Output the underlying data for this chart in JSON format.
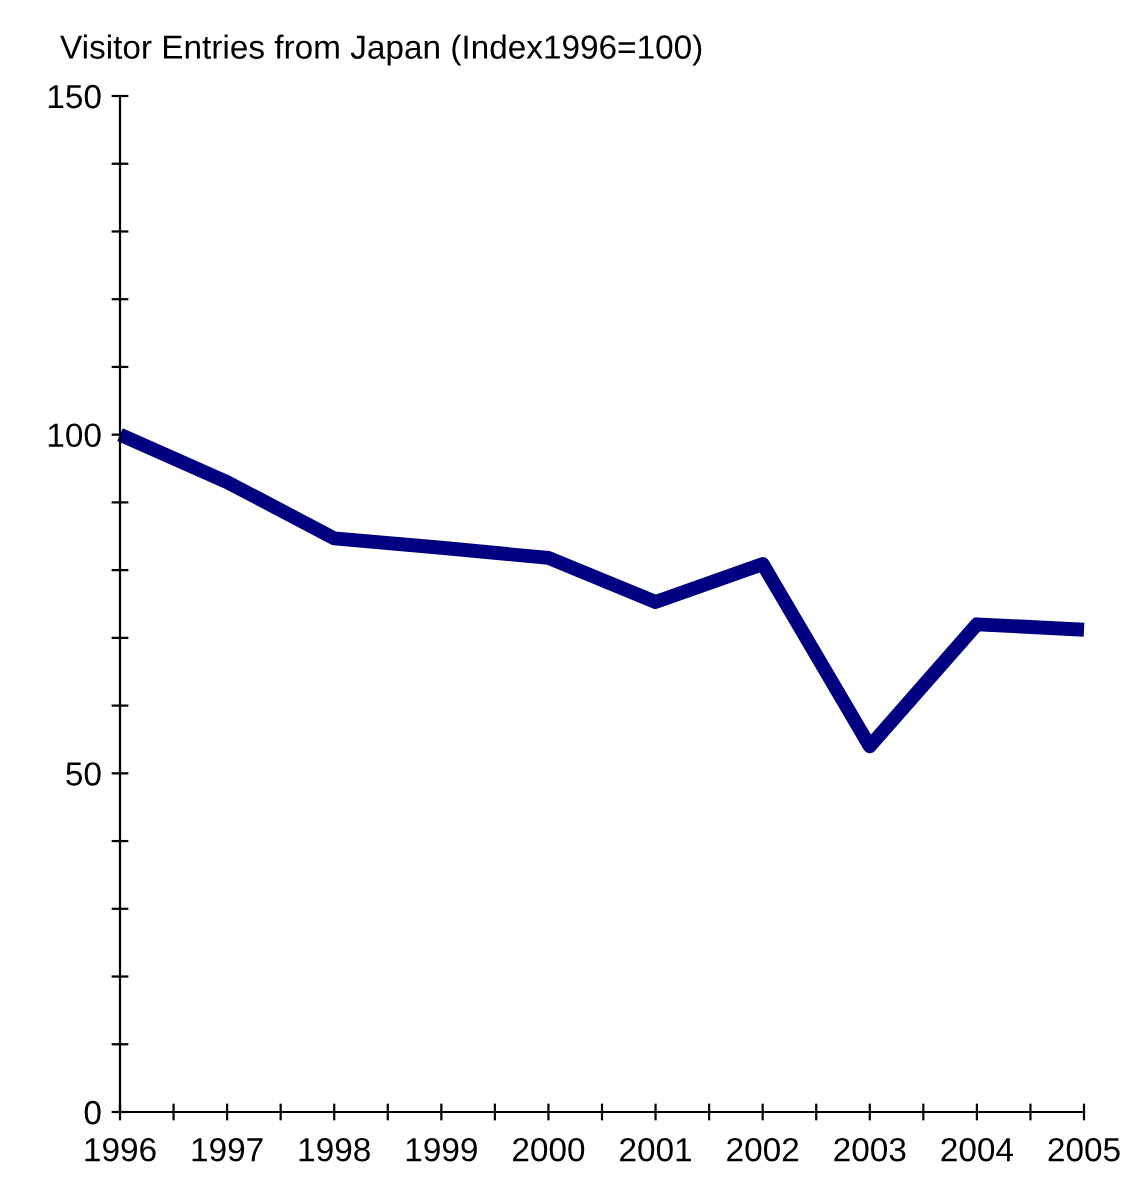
{
  "chart_data": {
    "type": "line",
    "title": "Visitor Entries from Japan (Index1996=100)",
    "x": [
      1996,
      1997,
      1998,
      1999,
      2000,
      2001,
      2002,
      2003,
      2004,
      2005
    ],
    "series": [
      {
        "color": "#000080",
        "values": [
          100,
          93,
          84.7,
          83.3,
          81.8,
          75.3,
          80.9,
          54,
          72,
          71.2
        ]
      }
    ],
    "xlim": [
      1996,
      2005
    ],
    "xticks": [
      1996,
      {
        "value": 1996.5,
        "label": null
      },
      1997,
      {
        "value": 1997.5,
        "label": null
      },
      1998,
      {
        "value": 1998.5,
        "label": null
      },
      1999,
      {
        "value": 1999.5,
        "label": null
      },
      2000,
      {
        "value": 2000.5,
        "label": null
      },
      2001,
      {
        "value": 2001.5,
        "label": null
      },
      2002,
      {
        "value": 2002.5,
        "label": null
      },
      2003,
      {
        "value": 2003.5,
        "label": null
      },
      2004,
      {
        "value": 2004.5,
        "label": null
      },
      2005
    ],
    "ylim": [
      0,
      150
    ],
    "yticks": [
      0,
      {
        "value": 10,
        "label": null
      },
      {
        "value": 20,
        "label": null
      },
      {
        "value": 30,
        "label": null
      },
      {
        "value": 40,
        "label": null
      },
      50,
      {
        "value": 60,
        "label": null
      },
      {
        "value": 70,
        "label": null
      },
      {
        "value": 80,
        "label": null
      },
      {
        "value": 90,
        "label": null
      },
      100,
      {
        "value": 110,
        "label": null
      },
      {
        "value": 120,
        "label": null
      },
      {
        "value": 130,
        "label": null
      },
      {
        "value": 140,
        "label": null
      },
      150
    ],
    "grid": false,
    "legend": false,
    "marker": "none",
    "line_style": "solid"
  }
}
